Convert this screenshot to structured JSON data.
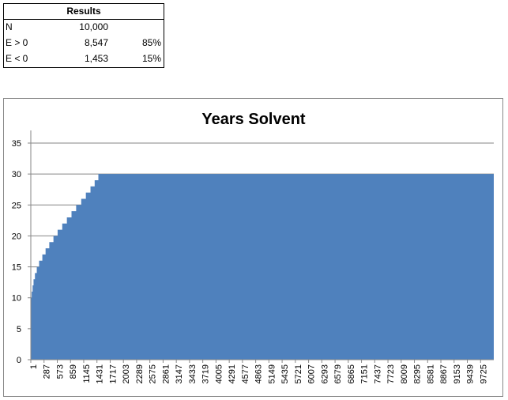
{
  "results": {
    "title": "Results",
    "rows": [
      {
        "label": "N",
        "value": "10,000",
        "pct": ""
      },
      {
        "label": "E > 0",
        "value": "8,547",
        "pct": "85%"
      },
      {
        "label": "E < 0",
        "value": "1,453",
        "pct": "15%"
      }
    ]
  },
  "chart_data": {
    "type": "area",
    "title": "Years Solvent",
    "xlabel": "",
    "ylabel": "",
    "x_range": [
      1,
      10000
    ],
    "ylim": [
      0,
      35
    ],
    "y_ticks": [
      0,
      5,
      10,
      15,
      20,
      25,
      30,
      35
    ],
    "x_tick_labels": [
      "1",
      "287",
      "573",
      "859",
      "1145",
      "1431",
      "1717",
      "2003",
      "2289",
      "2575",
      "2861",
      "3147",
      "3433",
      "3719",
      "4005",
      "4291",
      "4577",
      "4863",
      "5149",
      "5435",
      "5721",
      "6007",
      "6293",
      "6579",
      "6865",
      "7151",
      "7437",
      "7723",
      "8009",
      "8295",
      "8581",
      "8867",
      "9153",
      "9439",
      "9725"
    ],
    "grid": true,
    "legend": "none",
    "color": "#4f81bd",
    "series": [
      {
        "step_points": [
          [
            1,
            10
          ],
          [
            20,
            11
          ],
          [
            40,
            12
          ],
          [
            60,
            13
          ],
          [
            90,
            14
          ],
          [
            130,
            15
          ],
          [
            180,
            16
          ],
          [
            250,
            17
          ],
          [
            320,
            18
          ],
          [
            400,
            19
          ],
          [
            490,
            20
          ],
          [
            580,
            21
          ],
          [
            680,
            22
          ],
          [
            780,
            23
          ],
          [
            880,
            24
          ],
          [
            980,
            25
          ],
          [
            1090,
            26
          ],
          [
            1190,
            27
          ],
          [
            1290,
            28
          ],
          [
            1380,
            29
          ],
          [
            1460,
            30
          ],
          [
            10000,
            30
          ]
        ]
      }
    ]
  }
}
